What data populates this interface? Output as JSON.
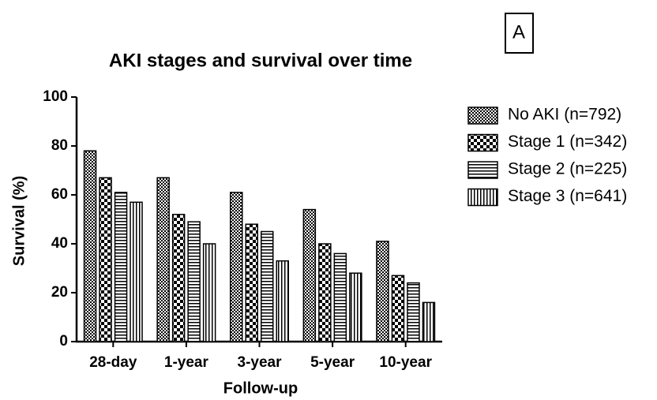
{
  "chart_data": {
    "type": "bar",
    "title": "AKI stages and survival over time",
    "panel_label": "A",
    "x_label": "Follow-up",
    "y_label": "Survival (%)",
    "categories": [
      "28-day",
      "1-year",
      "3-year",
      "5-year",
      "10-year"
    ],
    "series": [
      {
        "name": "No AKI (n=792)",
        "color": "#000000",
        "pattern": "fine-checker",
        "values": [
          78,
          67,
          61,
          54,
          41
        ]
      },
      {
        "name": "Stage 1 (n=342)",
        "color": "#000000",
        "pattern": "checker",
        "values": [
          67,
          52,
          48,
          40,
          27
        ]
      },
      {
        "name": "Stage 2 (n=225)",
        "color": "#000000",
        "pattern": "horizontal",
        "values": [
          61,
          49,
          45,
          36,
          24
        ]
      },
      {
        "name": "Stage 3 (n=641)",
        "color": "#000000",
        "pattern": "vertical",
        "values": [
          57,
          40,
          33,
          28,
          16
        ]
      }
    ],
    "ylim": [
      0,
      100
    ],
    "yticks": [
      0,
      20,
      40,
      60,
      80,
      100
    ],
    "legend": "right"
  }
}
